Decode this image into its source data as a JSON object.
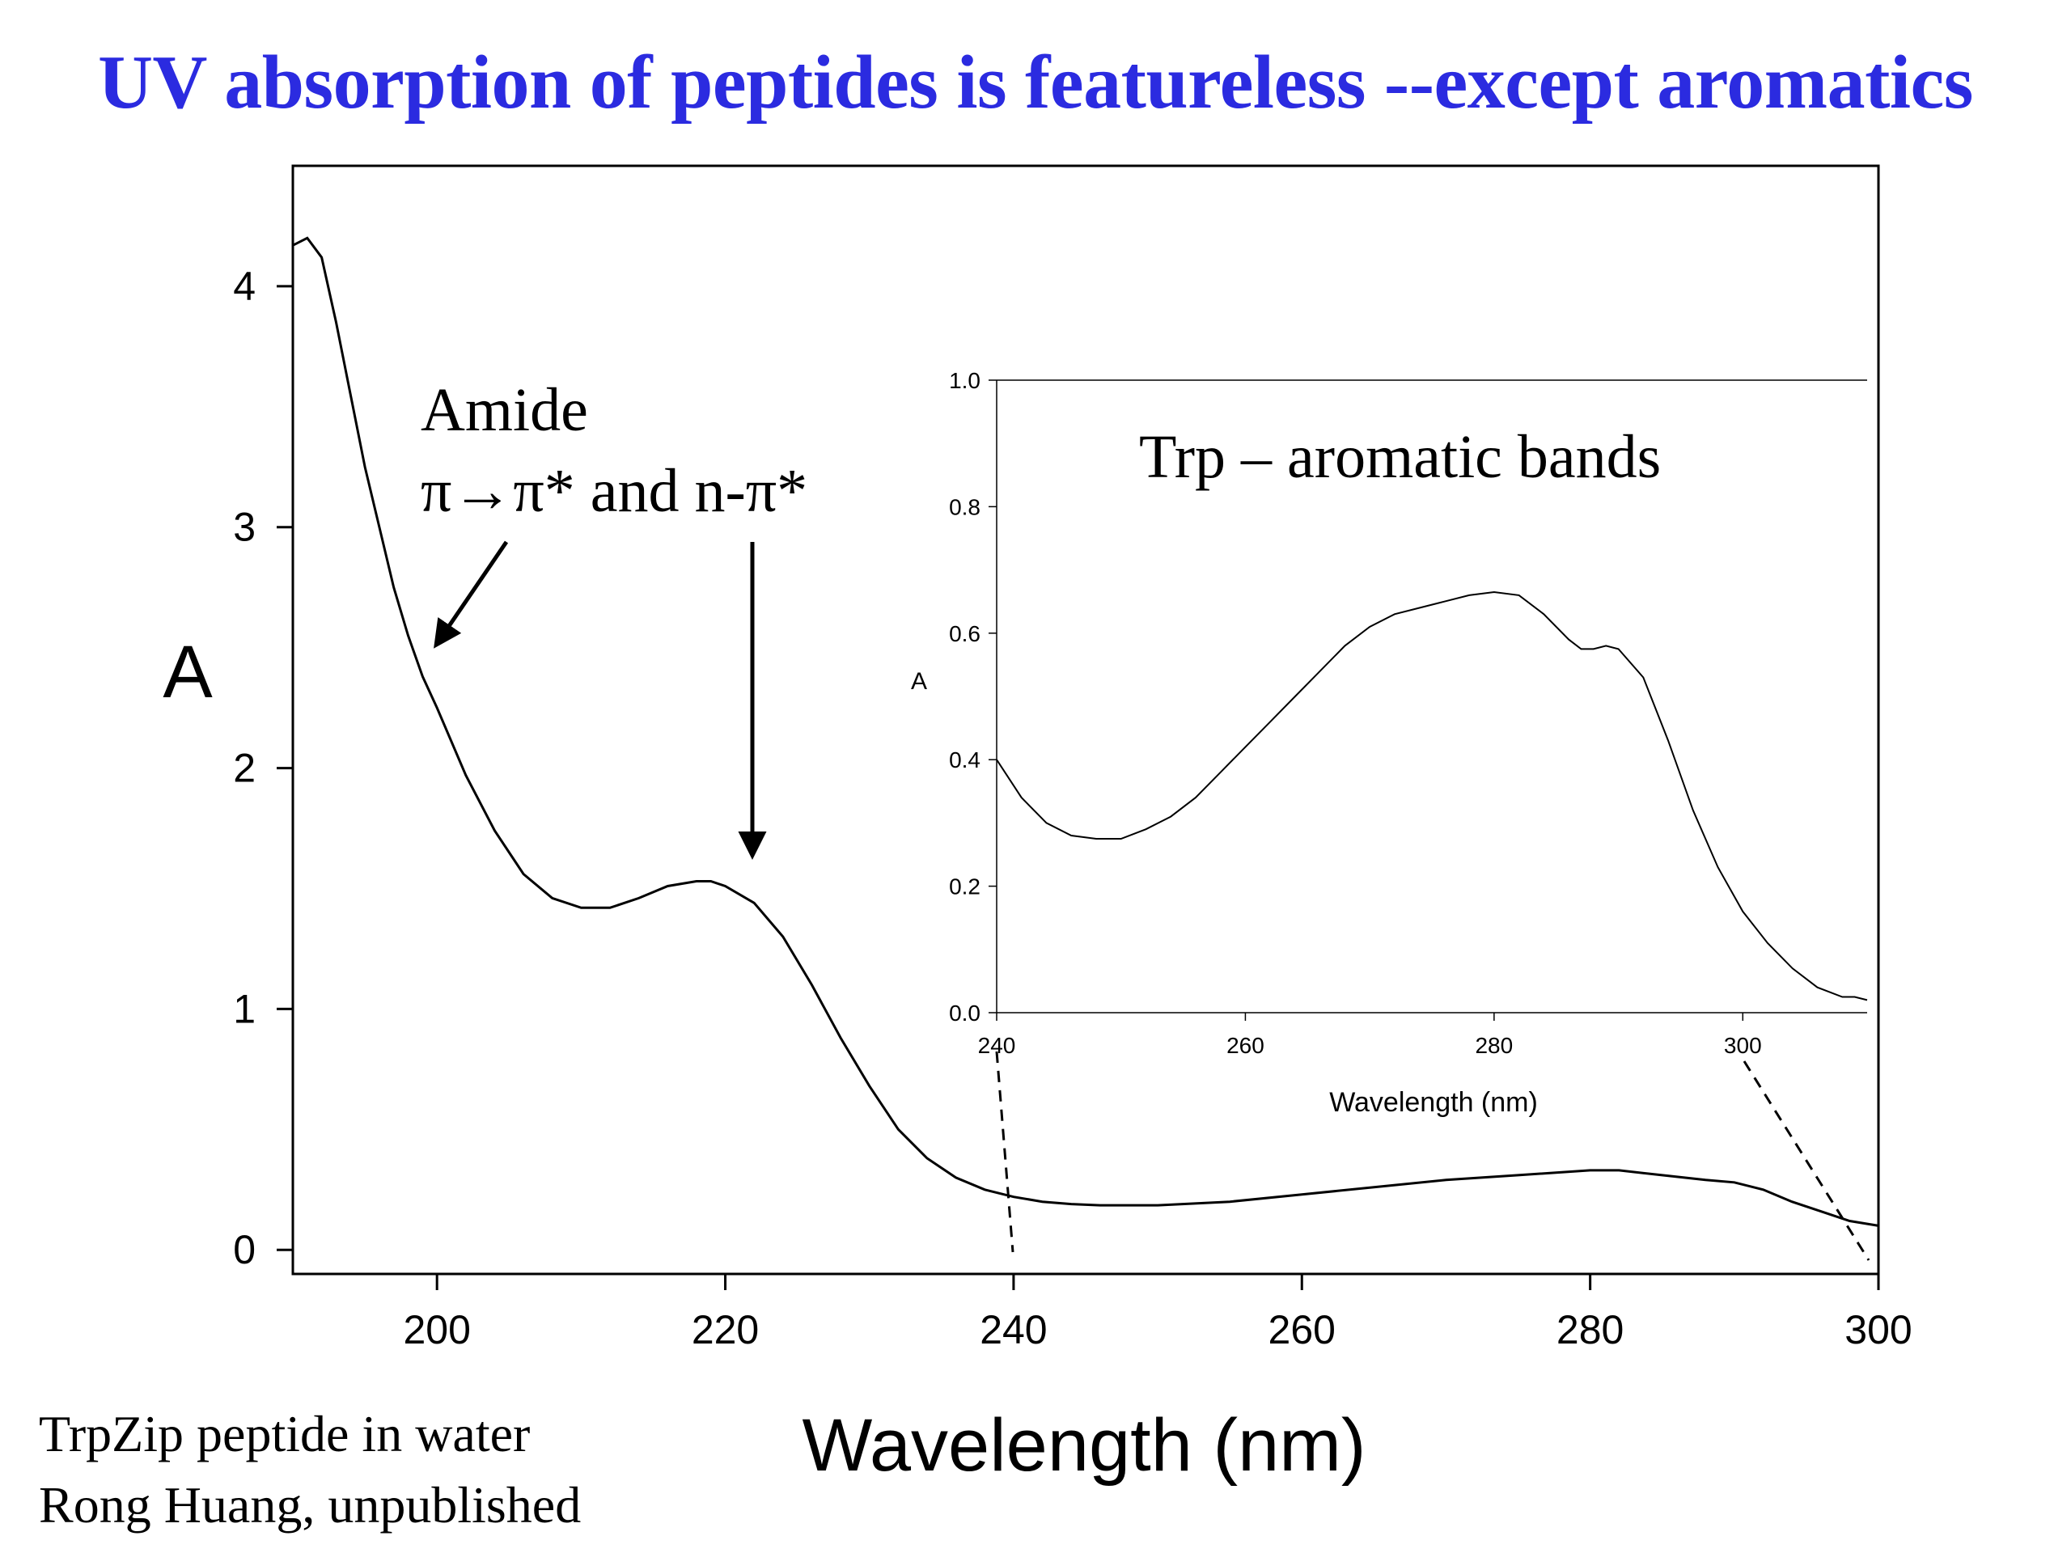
{
  "title": "UV absorption of peptides is featureless --except aromatics",
  "captions": [
    "TrpZip peptide in water",
    "Rong Huang, unpublished"
  ],
  "colors": {
    "title": "#2b2be0",
    "line": "#000000",
    "background": "#ffffff"
  },
  "annotations": {
    "amide_label": "Amide",
    "transition_label": "π→π* and n-π*",
    "trp_label": "Trp – aromatic bands"
  },
  "chart_data": [
    {
      "type": "line",
      "name": "main-spectrum",
      "xlabel": "Wavelength (nm)",
      "ylabel": "A",
      "xlim": [
        190,
        300
      ],
      "ylim": [
        -0.1,
        4.5
      ],
      "xticks": [
        200,
        220,
        240,
        260,
        280,
        300
      ],
      "yticks": [
        0,
        1,
        2,
        3,
        4
      ],
      "grid": false,
      "series": [
        {
          "x": [
            190,
            191,
            192,
            193,
            194,
            195,
            196,
            197,
            198,
            199,
            200,
            202,
            204,
            206,
            208,
            210,
            212,
            214,
            216,
            218,
            219,
            220,
            222,
            224,
            226,
            228,
            230,
            232,
            234,
            236,
            238,
            240,
            242,
            244,
            246,
            248,
            250,
            255,
            260,
            265,
            270,
            275,
            280,
            282,
            285,
            288,
            290,
            292,
            294,
            296,
            298,
            300
          ],
          "y": [
            4.17,
            4.2,
            4.12,
            3.85,
            3.55,
            3.25,
            3.0,
            2.75,
            2.55,
            2.38,
            2.25,
            1.97,
            1.74,
            1.56,
            1.46,
            1.42,
            1.42,
            1.46,
            1.51,
            1.53,
            1.53,
            1.51,
            1.44,
            1.3,
            1.1,
            0.88,
            0.68,
            0.5,
            0.38,
            0.3,
            0.25,
            0.22,
            0.2,
            0.19,
            0.185,
            0.185,
            0.185,
            0.2,
            0.23,
            0.26,
            0.29,
            0.31,
            0.33,
            0.33,
            0.31,
            0.29,
            0.28,
            0.25,
            0.2,
            0.16,
            0.12,
            0.1
          ]
        }
      ]
    },
    {
      "type": "line",
      "name": "inset-spectrum",
      "xlabel": "Wavelength (nm)",
      "ylabel": "A",
      "xlim": [
        240,
        310
      ],
      "ylim": [
        0.0,
        1.0
      ],
      "xticks": [
        240,
        260,
        280,
        300
      ],
      "yticks": [
        "0.0",
        "0.2",
        "0.4",
        "0.6",
        "0.8",
        "1.0"
      ],
      "grid": false,
      "series": [
        {
          "x": [
            240,
            242,
            244,
            246,
            248,
            250,
            252,
            254,
            256,
            258,
            260,
            262,
            264,
            266,
            268,
            270,
            272,
            274,
            276,
            278,
            280,
            282,
            284,
            286,
            287,
            288,
            289,
            290,
            292,
            294,
            296,
            298,
            300,
            302,
            304,
            306,
            308,
            309,
            310
          ],
          "y": [
            0.4,
            0.34,
            0.3,
            0.28,
            0.275,
            0.275,
            0.29,
            0.31,
            0.34,
            0.38,
            0.42,
            0.46,
            0.5,
            0.54,
            0.58,
            0.61,
            0.63,
            0.64,
            0.65,
            0.66,
            0.665,
            0.66,
            0.63,
            0.59,
            0.575,
            0.575,
            0.58,
            0.575,
            0.53,
            0.43,
            0.32,
            0.23,
            0.16,
            0.11,
            0.07,
            0.04,
            0.025,
            0.025,
            0.02
          ]
        }
      ]
    }
  ]
}
